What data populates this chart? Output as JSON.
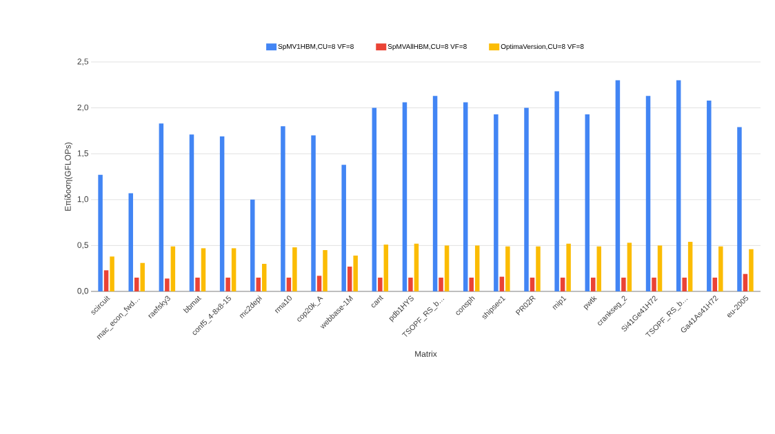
{
  "chart_data": {
    "type": "bar",
    "xlabel": "Matrix",
    "ylabel": "Επίδοση(GFLOPs)",
    "categories": [
      "scircuit",
      "mac_econ_fwd…",
      "raefsky3",
      "bbmat",
      "conf5_4-8x8-15",
      "mc2depi",
      "rma10",
      "cop20k_A",
      "webbase-1M",
      "cant",
      "pdb1HYS",
      "TSOPF_RS_b…",
      "consph",
      "shipsec1",
      "PR02R",
      "mip1",
      "pwtk",
      "crankseg_2",
      "Si41Ge41H72",
      "TSOPF_RS_b…",
      "Ga41As41H72",
      "eu-2005"
    ],
    "series": [
      {
        "name": "SpMV1HBM,CU=8 VF=8",
        "color": "#4285f4",
        "values": [
          1.27,
          1.07,
          1.83,
          1.71,
          1.69,
          1.0,
          1.8,
          1.7,
          1.38,
          2.0,
          2.06,
          2.13,
          2.06,
          1.93,
          2.0,
          2.18,
          1.93,
          2.3,
          2.13,
          2.3,
          2.08,
          1.79
        ]
      },
      {
        "name": "SpMVAllHBM,CU=8 VF=8",
        "color": "#ea4335",
        "values": [
          0.23,
          0.15,
          0.14,
          0.15,
          0.15,
          0.15,
          0.15,
          0.17,
          0.27,
          0.15,
          0.15,
          0.15,
          0.15,
          0.16,
          0.15,
          0.15,
          0.15,
          0.15,
          0.15,
          0.15,
          0.15,
          0.19
        ]
      },
      {
        "name": "OptimaVersion,CU=8 VF=8",
        "color": "#fbbc04",
        "values": [
          0.38,
          0.31,
          0.49,
          0.47,
          0.47,
          0.3,
          0.48,
          0.45,
          0.39,
          0.51,
          0.52,
          0.5,
          0.5,
          0.49,
          0.49,
          0.52,
          0.49,
          0.53,
          0.5,
          0.54,
          0.49,
          0.46
        ]
      }
    ],
    "ylim": [
      0,
      2.5
    ],
    "yticks": [
      {
        "value": 0,
        "label": "0,0"
      },
      {
        "value": 0.5,
        "label": "0,5"
      },
      {
        "value": 1,
        "label": "1,0"
      },
      {
        "value": 1.5,
        "label": "1,5"
      },
      {
        "value": 2,
        "label": "2,0"
      },
      {
        "value": 2.5,
        "label": "2,5"
      }
    ],
    "grid": "y",
    "legend": "top"
  }
}
